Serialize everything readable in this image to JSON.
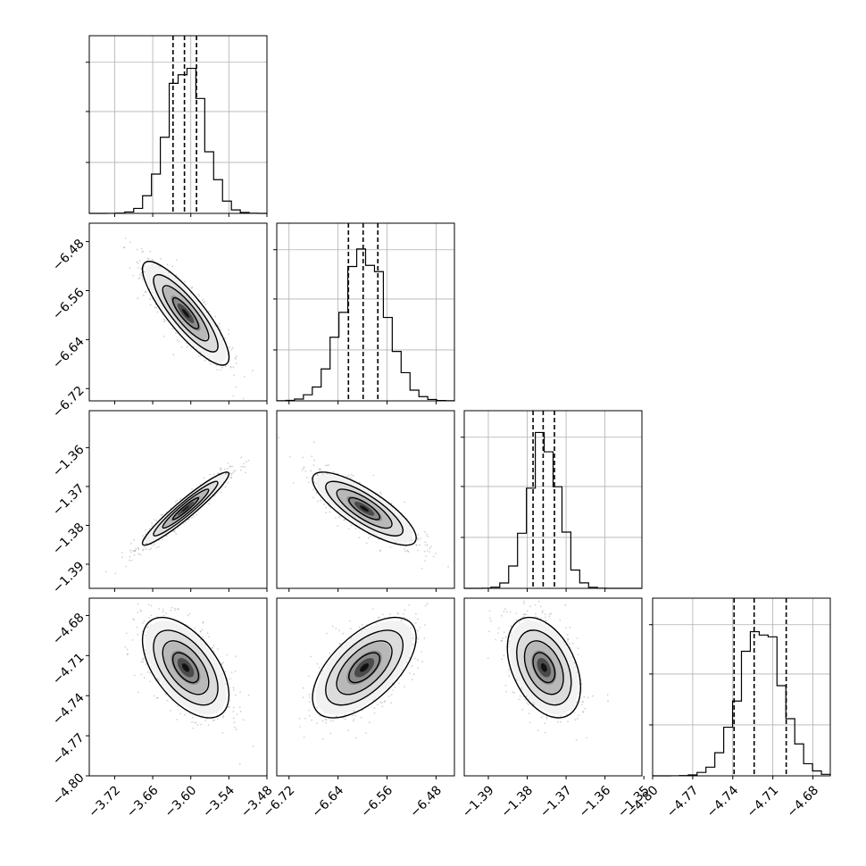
{
  "chart_data": {
    "type": "corner",
    "parameters": [
      {
        "id": "p1",
        "range": [
          -3.76,
          -3.48
        ],
        "ticks": [
          -3.72,
          -3.66,
          -3.6,
          -3.54,
          -3.48
        ],
        "tick_labels": [
          "−3.72",
          "−3.66",
          "−3.60",
          "−3.54",
          "−3.48"
        ],
        "quantiles": [
          -3.628,
          -3.61,
          -3.591
        ]
      },
      {
        "id": "p2",
        "range": [
          -6.74,
          -6.45
        ],
        "ticks": [
          -6.72,
          -6.64,
          -6.56,
          -6.48
        ],
        "tick_labels": [
          "−6.72",
          "−6.64",
          "−6.56",
          "−6.48"
        ],
        "quantiles": [
          -6.623,
          -6.599,
          -6.575
        ]
      },
      {
        "id": "p3",
        "range": [
          -1.3962,
          -1.3505
        ],
        "ticks": [
          -1.39,
          -1.38,
          -1.37,
          -1.36,
          -1.35
        ],
        "tick_labels": [
          "−1.39",
          "−1.38",
          "−1.37",
          "−1.36",
          "−1.35"
        ],
        "quantiles": [
          -1.3785,
          -1.3759,
          -1.373
        ]
      },
      {
        "id": "p4",
        "range": [
          -4.8,
          -4.667
        ],
        "ticks": [
          -4.8,
          -4.77,
          -4.74,
          -4.71,
          -4.68
        ],
        "tick_labels": [
          "−4.80",
          "−4.77",
          "−4.74",
          "−4.71",
          "−4.68"
        ],
        "quantiles": [
          -4.739,
          -4.724,
          -4.7
        ]
      }
    ],
    "diagonal_histograms": [
      {
        "param": "p1",
        "shape_sd": 0.029,
        "peak_at": -3.608
      },
      {
        "param": "p2",
        "shape_sd": 0.036,
        "peak_at": -6.597
      },
      {
        "param": "p3",
        "shape_sd": 0.004,
        "peak_at": -1.3757
      },
      {
        "param": "p4",
        "shape_sd": 0.016,
        "peak_at": -4.719
      }
    ],
    "joint_panels": [
      {
        "x": "p1",
        "y": "p2",
        "corr": -0.85
      },
      {
        "x": "p1",
        "y": "p3",
        "corr": 0.95
      },
      {
        "x": "p2",
        "y": "p3",
        "corr": -0.8
      },
      {
        "x": "p1",
        "y": "p4",
        "corr": -0.55
      },
      {
        "x": "p2",
        "y": "p4",
        "corr": 0.6
      },
      {
        "x": "p3",
        "y": "p4",
        "corr": -0.4
      }
    ],
    "contour_levels": [
      "0.5-sigma",
      "1-sigma",
      "1.5-sigma",
      "2-sigma"
    ],
    "grid": true,
    "colors": {
      "line": "#000000",
      "points": "#7f7f7f",
      "grid": "#b0b0b0",
      "frame": "#000000"
    }
  }
}
